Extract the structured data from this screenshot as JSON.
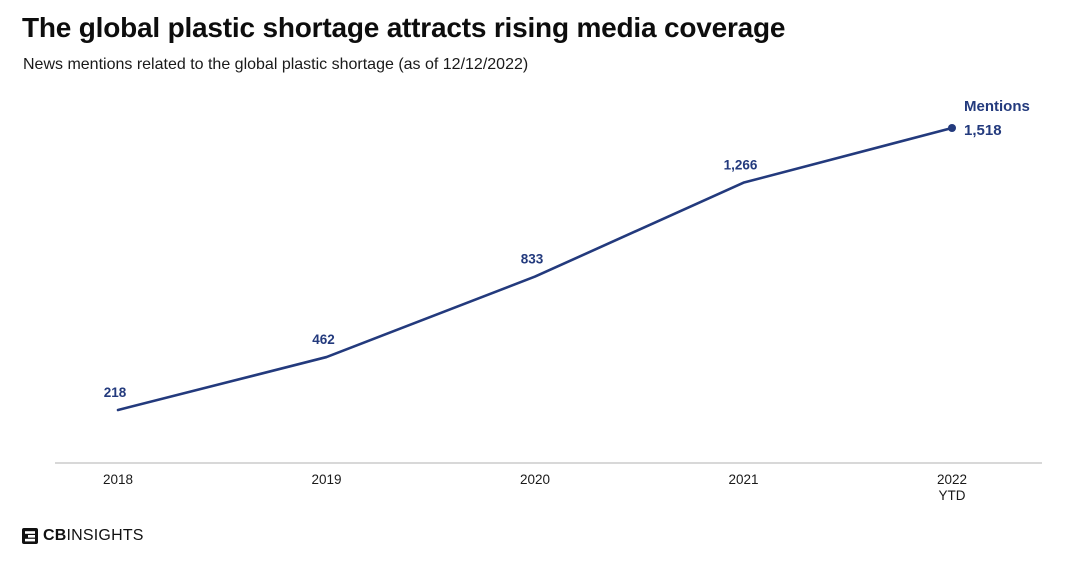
{
  "page": {
    "title": "The global plastic shortage attracts rising media coverage",
    "subtitle": "News mentions related to the global plastic shortage (as of 12/12/2022)"
  },
  "chart_data": {
    "type": "line",
    "categories": [
      "2018",
      "2019",
      "2020",
      "2021",
      "2022\nYTD"
    ],
    "values": [
      218,
      462,
      833,
      1266,
      1518
    ],
    "value_labels": [
      "218",
      "462",
      "833",
      "1,266",
      "1,518"
    ],
    "series_label": "Mentions",
    "title": "The global plastic shortage attracts rising media coverage",
    "xlabel": "",
    "ylabel": "Mentions",
    "ylim": [
      0,
      1600
    ],
    "grid": false,
    "legend_position": "none",
    "line_color": "#233a7d",
    "label_color": "#233a7d",
    "axis_color": "#cccccc",
    "tick_color": "#1a1a1a"
  },
  "footer": {
    "logo_bold": "CB",
    "logo_rest": "INSIGHTS"
  }
}
